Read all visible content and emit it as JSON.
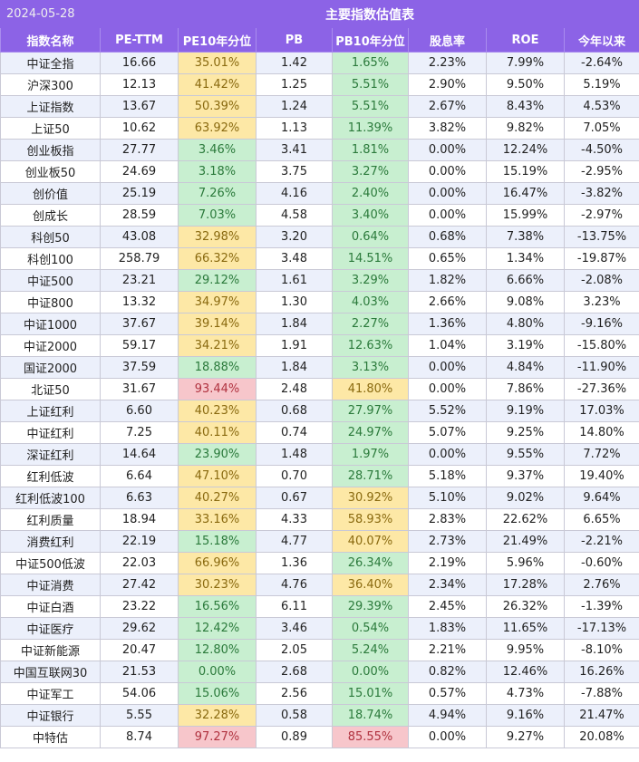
{
  "date": "2024-05-28",
  "title": "主要指数估值表",
  "colors": {
    "header": "#8c63e6",
    "green": "#c8efd0",
    "yellow": "#fde8a6",
    "red": "#f7c6cb"
  },
  "columns": [
    "指数名称",
    "PE-TTM",
    "PE10年分位",
    "PB",
    "PB10年分位",
    "股息率",
    "ROE",
    "今年以来"
  ],
  "rows": [
    {
      "name": "中证全指",
      "pe": "16.66",
      "pe_pct": "35.01%",
      "pe_c": "yellow",
      "pb": "1.42",
      "pb_pct": "1.65%",
      "pb_c": "green",
      "div": "2.23%",
      "roe": "7.99%",
      "ytd": "-2.64%"
    },
    {
      "name": "沪深300",
      "pe": "12.13",
      "pe_pct": "41.42%",
      "pe_c": "yellow",
      "pb": "1.25",
      "pb_pct": "5.51%",
      "pb_c": "green",
      "div": "2.90%",
      "roe": "9.50%",
      "ytd": "5.19%"
    },
    {
      "name": "上证指数",
      "pe": "13.67",
      "pe_pct": "50.39%",
      "pe_c": "yellow",
      "pb": "1.24",
      "pb_pct": "5.51%",
      "pb_c": "green",
      "div": "2.67%",
      "roe": "8.43%",
      "ytd": "4.53%"
    },
    {
      "name": "上证50",
      "pe": "10.62",
      "pe_pct": "63.92%",
      "pe_c": "yellow",
      "pb": "1.13",
      "pb_pct": "11.39%",
      "pb_c": "green",
      "div": "3.82%",
      "roe": "9.82%",
      "ytd": "7.05%"
    },
    {
      "name": "创业板指",
      "pe": "27.77",
      "pe_pct": "3.46%",
      "pe_c": "green",
      "pb": "3.41",
      "pb_pct": "1.81%",
      "pb_c": "green",
      "div": "0.00%",
      "roe": "12.24%",
      "ytd": "-4.50%"
    },
    {
      "name": "创业板50",
      "pe": "24.69",
      "pe_pct": "3.18%",
      "pe_c": "green",
      "pb": "3.75",
      "pb_pct": "3.27%",
      "pb_c": "green",
      "div": "0.00%",
      "roe": "15.19%",
      "ytd": "-2.95%"
    },
    {
      "name": "创价值",
      "pe": "25.19",
      "pe_pct": "7.26%",
      "pe_c": "green",
      "pb": "4.16",
      "pb_pct": "2.40%",
      "pb_c": "green",
      "div": "0.00%",
      "roe": "16.47%",
      "ytd": "-3.82%"
    },
    {
      "name": "创成长",
      "pe": "28.59",
      "pe_pct": "7.03%",
      "pe_c": "green",
      "pb": "4.58",
      "pb_pct": "3.40%",
      "pb_c": "green",
      "div": "0.00%",
      "roe": "15.99%",
      "ytd": "-2.97%"
    },
    {
      "name": "科创50",
      "pe": "43.08",
      "pe_pct": "32.98%",
      "pe_c": "yellow",
      "pb": "3.20",
      "pb_pct": "0.64%",
      "pb_c": "green",
      "div": "0.68%",
      "roe": "7.38%",
      "ytd": "-13.75%"
    },
    {
      "name": "科创100",
      "pe": "258.79",
      "pe_pct": "66.32%",
      "pe_c": "yellow",
      "pb": "3.48",
      "pb_pct": "14.51%",
      "pb_c": "green",
      "div": "0.65%",
      "roe": "1.34%",
      "ytd": "-19.87%"
    },
    {
      "name": "中证500",
      "pe": "23.21",
      "pe_pct": "29.12%",
      "pe_c": "green",
      "pb": "1.61",
      "pb_pct": "3.29%",
      "pb_c": "green",
      "div": "1.82%",
      "roe": "6.66%",
      "ytd": "-2.08%"
    },
    {
      "name": "中证800",
      "pe": "13.32",
      "pe_pct": "34.97%",
      "pe_c": "yellow",
      "pb": "1.30",
      "pb_pct": "4.03%",
      "pb_c": "green",
      "div": "2.66%",
      "roe": "9.08%",
      "ytd": "3.23%"
    },
    {
      "name": "中证1000",
      "pe": "37.67",
      "pe_pct": "39.14%",
      "pe_c": "yellow",
      "pb": "1.84",
      "pb_pct": "2.27%",
      "pb_c": "green",
      "div": "1.36%",
      "roe": "4.80%",
      "ytd": "-9.16%"
    },
    {
      "name": "中证2000",
      "pe": "59.17",
      "pe_pct": "34.21%",
      "pe_c": "yellow",
      "pb": "1.91",
      "pb_pct": "12.63%",
      "pb_c": "green",
      "div": "1.04%",
      "roe": "3.19%",
      "ytd": "-15.80%"
    },
    {
      "name": "国证2000",
      "pe": "37.59",
      "pe_pct": "18.88%",
      "pe_c": "green",
      "pb": "1.84",
      "pb_pct": "3.13%",
      "pb_c": "green",
      "div": "0.00%",
      "roe": "4.84%",
      "ytd": "-11.90%"
    },
    {
      "name": "北证50",
      "pe": "31.67",
      "pe_pct": "93.44%",
      "pe_c": "red",
      "pb": "2.48",
      "pb_pct": "41.80%",
      "pb_c": "yellow",
      "div": "0.00%",
      "roe": "7.86%",
      "ytd": "-27.36%"
    },
    {
      "name": "上证红利",
      "pe": "6.60",
      "pe_pct": "40.23%",
      "pe_c": "yellow",
      "pb": "0.68",
      "pb_pct": "27.97%",
      "pb_c": "green",
      "div": "5.52%",
      "roe": "9.19%",
      "ytd": "17.03%"
    },
    {
      "name": "中证红利",
      "pe": "7.25",
      "pe_pct": "40.11%",
      "pe_c": "yellow",
      "pb": "0.74",
      "pb_pct": "24.97%",
      "pb_c": "green",
      "div": "5.07%",
      "roe": "9.25%",
      "ytd": "14.80%"
    },
    {
      "name": "深证红利",
      "pe": "14.64",
      "pe_pct": "23.90%",
      "pe_c": "green",
      "pb": "1.48",
      "pb_pct": "1.97%",
      "pb_c": "green",
      "div": "0.00%",
      "roe": "9.55%",
      "ytd": "7.72%"
    },
    {
      "name": "红利低波",
      "pe": "6.64",
      "pe_pct": "47.10%",
      "pe_c": "yellow",
      "pb": "0.70",
      "pb_pct": "28.71%",
      "pb_c": "green",
      "div": "5.18%",
      "roe": "9.37%",
      "ytd": "19.40%"
    },
    {
      "name": "红利低波100",
      "pe": "6.63",
      "pe_pct": "40.27%",
      "pe_c": "yellow",
      "pb": "0.67",
      "pb_pct": "30.92%",
      "pb_c": "yellow",
      "div": "5.10%",
      "roe": "9.02%",
      "ytd": "9.64%"
    },
    {
      "name": "红利质量",
      "pe": "18.94",
      "pe_pct": "33.16%",
      "pe_c": "yellow",
      "pb": "4.33",
      "pb_pct": "58.93%",
      "pb_c": "yellow",
      "div": "2.83%",
      "roe": "22.62%",
      "ytd": "6.65%"
    },
    {
      "name": "消费红利",
      "pe": "22.19",
      "pe_pct": "15.18%",
      "pe_c": "green",
      "pb": "4.77",
      "pb_pct": "40.07%",
      "pb_c": "yellow",
      "div": "2.73%",
      "roe": "21.49%",
      "ytd": "-2.21%"
    },
    {
      "name": "中证500低波",
      "pe": "22.03",
      "pe_pct": "66.96%",
      "pe_c": "yellow",
      "pb": "1.36",
      "pb_pct": "26.34%",
      "pb_c": "green",
      "div": "2.19%",
      "roe": "5.96%",
      "ytd": "-0.60%"
    },
    {
      "name": "中证消费",
      "pe": "27.42",
      "pe_pct": "30.23%",
      "pe_c": "yellow",
      "pb": "4.76",
      "pb_pct": "36.40%",
      "pb_c": "yellow",
      "div": "2.34%",
      "roe": "17.28%",
      "ytd": "2.76%"
    },
    {
      "name": "中证白酒",
      "pe": "23.22",
      "pe_pct": "16.56%",
      "pe_c": "green",
      "pb": "6.11",
      "pb_pct": "29.39%",
      "pb_c": "green",
      "div": "2.45%",
      "roe": "26.32%",
      "ytd": "-1.39%"
    },
    {
      "name": "中证医疗",
      "pe": "29.62",
      "pe_pct": "12.42%",
      "pe_c": "green",
      "pb": "3.46",
      "pb_pct": "0.54%",
      "pb_c": "green",
      "div": "1.83%",
      "roe": "11.65%",
      "ytd": "-17.13%"
    },
    {
      "name": "中证新能源",
      "pe": "20.47",
      "pe_pct": "12.80%",
      "pe_c": "green",
      "pb": "2.05",
      "pb_pct": "5.24%",
      "pb_c": "green",
      "div": "2.21%",
      "roe": "9.95%",
      "ytd": "-8.10%"
    },
    {
      "name": "中国互联网30",
      "pe": "21.53",
      "pe_pct": "0.00%",
      "pe_c": "green",
      "pb": "2.68",
      "pb_pct": "0.00%",
      "pb_c": "green",
      "div": "0.82%",
      "roe": "12.46%",
      "ytd": "16.26%"
    },
    {
      "name": "中证军工",
      "pe": "54.06",
      "pe_pct": "15.06%",
      "pe_c": "green",
      "pb": "2.56",
      "pb_pct": "15.01%",
      "pb_c": "green",
      "div": "0.57%",
      "roe": "4.73%",
      "ytd": "-7.88%"
    },
    {
      "name": "中证银行",
      "pe": "5.55",
      "pe_pct": "32.28%",
      "pe_c": "yellow",
      "pb": "0.58",
      "pb_pct": "18.74%",
      "pb_c": "green",
      "div": "4.94%",
      "roe": "9.16%",
      "ytd": "21.47%"
    },
    {
      "name": "中特估",
      "pe": "8.74",
      "pe_pct": "97.27%",
      "pe_c": "red",
      "pb": "0.89",
      "pb_pct": "85.55%",
      "pb_c": "red",
      "div": "0.00%",
      "roe": "9.27%",
      "ytd": "20.08%"
    }
  ]
}
